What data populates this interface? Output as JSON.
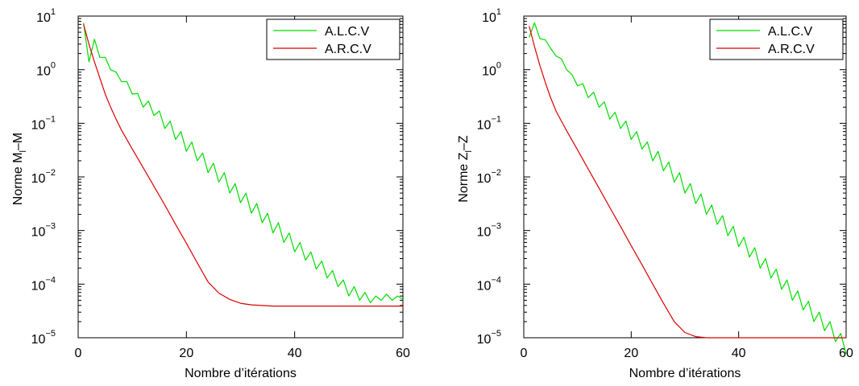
{
  "chart_data": [
    {
      "type": "line",
      "xlabel": "Nombre d’itérations",
      "ylabel": {
        "base": "Norme  M",
        "sub": "l",
        "rest": "–M"
      },
      "xlim": [
        0,
        60
      ],
      "ylim": [
        1e-05,
        10
      ],
      "yscale": "log",
      "xticks": [
        0,
        20,
        40,
        60
      ],
      "yticks": [
        {
          "value": 10,
          "label_base": "10",
          "label_exp": "1"
        },
        {
          "value": 1,
          "label_base": "10",
          "label_exp": "0"
        },
        {
          "value": 0.1,
          "label_base": "10",
          "label_exp": "−1"
        },
        {
          "value": 0.01,
          "label_base": "10",
          "label_exp": "−2"
        },
        {
          "value": 0.001,
          "label_base": "10",
          "label_exp": "−3"
        },
        {
          "value": 0.0001,
          "label_base": "10",
          "label_exp": "−4"
        },
        {
          "value": 1e-05,
          "label_base": "10",
          "label_exp": "−5"
        }
      ],
      "grid": false,
      "legend_position": "top-right",
      "series": [
        {
          "name": "A.L.C.V",
          "color": "#00dd00",
          "x": [
            1,
            2,
            3,
            4,
            5,
            6,
            7,
            8,
            9,
            10,
            11,
            12,
            13,
            14,
            15,
            16,
            17,
            18,
            19,
            20,
            21,
            22,
            23,
            24,
            25,
            26,
            27,
            28,
            29,
            30,
            31,
            32,
            33,
            34,
            35,
            36,
            37,
            38,
            39,
            40,
            41,
            42,
            43,
            44,
            45,
            46,
            47,
            48,
            49,
            50,
            51,
            52,
            53,
            54,
            55,
            56,
            57,
            58,
            59,
            60
          ],
          "y": [
            7.5,
            1.4,
            3.7,
            1.7,
            1.7,
            1.0,
            0.9,
            0.6,
            0.6,
            0.35,
            0.36,
            0.2,
            0.26,
            0.14,
            0.17,
            0.08,
            0.11,
            0.05,
            0.07,
            0.03,
            0.045,
            0.02,
            0.028,
            0.012,
            0.018,
            0.008,
            0.012,
            0.005,
            0.0075,
            0.0033,
            0.005,
            0.0021,
            0.0032,
            0.0014,
            0.0021,
            0.0009,
            0.0014,
            0.0006,
            0.0009,
            0.0004,
            0.0006,
            0.00028,
            0.0004,
            0.00019,
            0.00027,
            0.00013,
            0.00018,
            9e-05,
            0.00012,
            6e-05,
            9e-05,
            5e-05,
            7e-05,
            4.5e-05,
            6e-05,
            5e-05,
            6.5e-05,
            5e-05,
            6e-05,
            5.2e-05
          ]
        },
        {
          "name": "A.R.C.V",
          "color": "#dd0000",
          "x": [
            1,
            2,
            3,
            4,
            5,
            6,
            7,
            8,
            9,
            10,
            12,
            14,
            16,
            18,
            20,
            22,
            24,
            26,
            28,
            30,
            32,
            34,
            36,
            38,
            40,
            45,
            50,
            55,
            60
          ],
          "y": [
            7.0,
            3.0,
            1.4,
            0.7,
            0.35,
            0.2,
            0.12,
            0.075,
            0.05,
            0.033,
            0.015,
            0.0067,
            0.003,
            0.0013,
            0.00058,
            0.00025,
            0.00011,
            6.8e-05,
            5.2e-05,
            4.4e-05,
            4.1e-05,
            4e-05,
            3.9e-05,
            3.9e-05,
            3.9e-05,
            3.9e-05,
            3.9e-05,
            3.9e-05,
            3.9e-05
          ]
        }
      ]
    },
    {
      "type": "line",
      "xlabel": "Nombre d’itérations",
      "ylabel": {
        "base": "Norme Z",
        "sub": "l",
        "rest": "–Z"
      },
      "xlim": [
        0,
        60
      ],
      "ylim": [
        1e-05,
        10
      ],
      "yscale": "log",
      "xticks": [
        0,
        20,
        40,
        60
      ],
      "yticks": [
        {
          "value": 10,
          "label_base": "10",
          "label_exp": "1"
        },
        {
          "value": 1,
          "label_base": "10",
          "label_exp": "0"
        },
        {
          "value": 0.1,
          "label_base": "10",
          "label_exp": "−1"
        },
        {
          "value": 0.01,
          "label_base": "10",
          "label_exp": "−2"
        },
        {
          "value": 0.001,
          "label_base": "10",
          "label_exp": "−3"
        },
        {
          "value": 0.0001,
          "label_base": "10",
          "label_exp": "−4"
        },
        {
          "value": 1e-05,
          "label_base": "10",
          "label_exp": "−5"
        }
      ],
      "grid": false,
      "legend_position": "top-right",
      "series": [
        {
          "name": "A.L.C.V",
          "color": "#00dd00",
          "x": [
            1,
            2,
            3,
            4,
            5,
            6,
            7,
            8,
            9,
            10,
            11,
            12,
            13,
            14,
            15,
            16,
            17,
            18,
            19,
            20,
            21,
            22,
            23,
            24,
            25,
            26,
            27,
            28,
            29,
            30,
            31,
            32,
            33,
            34,
            35,
            36,
            37,
            38,
            39,
            40,
            41,
            42,
            43,
            44,
            45,
            46,
            47,
            48,
            49,
            50,
            51,
            52,
            53,
            54,
            55,
            56,
            57,
            58,
            59,
            60
          ],
          "y": [
            4.0,
            7.5,
            3.8,
            3.6,
            2.5,
            1.8,
            1.6,
            1.0,
            0.8,
            0.5,
            0.55,
            0.3,
            0.38,
            0.2,
            0.25,
            0.12,
            0.16,
            0.08,
            0.11,
            0.05,
            0.07,
            0.033,
            0.045,
            0.02,
            0.03,
            0.013,
            0.019,
            0.008,
            0.012,
            0.005,
            0.0075,
            0.0032,
            0.0048,
            0.002,
            0.003,
            0.0013,
            0.0019,
            0.0008,
            0.0012,
            0.0005,
            0.00075,
            0.00032,
            0.00048,
            0.0002,
            0.0003,
            0.00013,
            0.00019,
            8e-05,
            0.00012,
            5e-05,
            7.5e-05,
            3.3e-05,
            4.8e-05,
            2e-05,
            3e-05,
            1.35e-05,
            2e-05,
            8.5e-06,
            1.2e-05,
            5e-06
          ]
        },
        {
          "name": "A.R.C.V",
          "color": "#dd0000",
          "x": [
            1,
            2,
            3,
            4,
            5,
            6,
            7,
            8,
            9,
            10,
            12,
            14,
            16,
            18,
            20,
            22,
            24,
            26,
            28,
            30,
            32,
            34,
            36,
            38,
            40,
            45,
            50,
            55,
            60
          ],
          "y": [
            6.5,
            2.7,
            1.2,
            0.58,
            0.3,
            0.17,
            0.11,
            0.072,
            0.048,
            0.032,
            0.014,
            0.0062,
            0.0027,
            0.0012,
            0.00052,
            0.00023,
            0.0001,
            4.4e-05,
            2e-05,
            1.25e-05,
            1.05e-05,
            1e-05,
            1e-05,
            1e-05,
            1e-05,
            1e-05,
            1e-05,
            1e-05,
            1e-05
          ]
        }
      ]
    }
  ]
}
